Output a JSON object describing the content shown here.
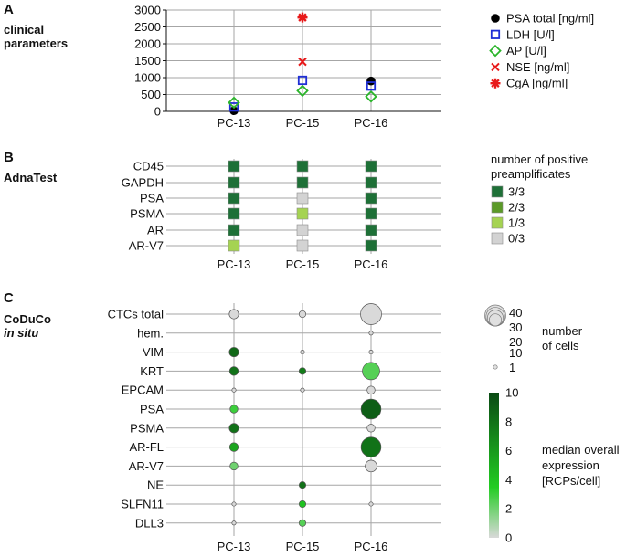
{
  "figure": {
    "panelA": {
      "letter": "A",
      "title_lines": [
        "clinical",
        "parameters"
      ]
    },
    "panelB": {
      "letter": "B",
      "title_lines": [
        "AdnaTest"
      ],
      "legend_title_lines": [
        "number of positive",
        "preamplificates"
      ]
    },
    "panelC": {
      "letter": "C",
      "title_lines": [
        "CoDuCo",
        "in situ"
      ],
      "size_legend_title_lines": [
        "number",
        "of cells"
      ],
      "color_legend_title_lines": [
        "median overall",
        "expression",
        "[RCPs/cell]"
      ]
    }
  },
  "chart_data": [
    {
      "type": "scatter",
      "panel": "A",
      "categories": [
        "PC-13",
        "PC-15",
        "PC-16"
      ],
      "ylim": [
        0,
        3000
      ],
      "yticks": [
        "0",
        "500",
        "1000",
        "1500",
        "2000",
        "2500",
        "3000"
      ],
      "series": [
        {
          "name": "PSA total [ng/ml]",
          "marker": "filled-circle",
          "color": "#000000",
          "values": [
            20,
            null,
            900
          ]
        },
        {
          "name": "LDH [U/l]",
          "marker": "open-square",
          "color": "#1f2fd6",
          "values": [
            130,
            920,
            750
          ]
        },
        {
          "name": "AP [U/l]",
          "marker": "open-diamond",
          "color": "#2bb52b",
          "values": [
            260,
            610,
            440
          ]
        },
        {
          "name": "NSE [ng/ml]",
          "marker": "cross",
          "color": "#e8191a",
          "values": [
            null,
            1470,
            null
          ]
        },
        {
          "name": "CgA [ng/ml]",
          "marker": "asterisk",
          "color": "#e8191a",
          "values": [
            null,
            2780,
            null
          ]
        }
      ]
    },
    {
      "type": "heatmap",
      "panel": "B",
      "categories": [
        "PC-13",
        "PC-15",
        "PC-16"
      ],
      "rows": [
        "CD45",
        "GAPDH",
        "PSA",
        "PSMA",
        "AR",
        "AR-V7"
      ],
      "values": [
        [
          "3/3",
          "3/3",
          "3/3"
        ],
        [
          "3/3",
          "3/3",
          "3/3"
        ],
        [
          "3/3",
          "0/3",
          "3/3"
        ],
        [
          "3/3",
          "1/3",
          "3/3"
        ],
        [
          "3/3",
          "0/3",
          "3/3"
        ],
        [
          "1/3",
          "0/3",
          "3/3"
        ]
      ],
      "legend": [
        {
          "label": "3/3",
          "color": "#1e7037"
        },
        {
          "label": "2/3",
          "color": "#5b9a28"
        },
        {
          "label": "1/3",
          "color": "#a5d352"
        },
        {
          "label": "0/3",
          "color": "#d3d3d3"
        }
      ]
    },
    {
      "type": "bubble",
      "panel": "C",
      "categories": [
        "PC-13",
        "PC-15",
        "PC-16"
      ],
      "rows": [
        "CTCs total",
        "hem.",
        "VIM",
        "KRT",
        "EPCAM",
        "PSA",
        "PSMA",
        "AR-FL",
        "AR-V7",
        "NE",
        "SLFN11",
        "DLL3"
      ],
      "cells": [
        [
          {
            "n": 5,
            "expr": null
          },
          {
            "n": 2,
            "expr": null
          },
          {
            "n": 40,
            "expr": null
          }
        ],
        [
          null,
          null,
          {
            "n": 1,
            "expr": null
          }
        ],
        [
          {
            "n": 5,
            "expr": 8.5
          },
          {
            "n": 1,
            "expr": null
          },
          {
            "n": 1,
            "expr": null
          }
        ],
        [
          {
            "n": 4,
            "expr": 8.0
          },
          {
            "n": 2,
            "expr": 7.5
          },
          {
            "n": 25,
            "expr": 2.5
          }
        ],
        [
          {
            "n": 1,
            "expr": null
          },
          {
            "n": 1,
            "expr": null
          },
          {
            "n": 3,
            "expr": null
          }
        ],
        [
          {
            "n": 3,
            "expr": 3.0
          },
          null,
          {
            "n": 35,
            "expr": 9.0
          }
        ],
        [
          {
            "n": 5,
            "expr": 8.0
          },
          null,
          {
            "n": 3,
            "expr": null
          }
        ],
        [
          {
            "n": 4,
            "expr": 5.5
          },
          null,
          {
            "n": 35,
            "expr": 8.0
          }
        ],
        [
          {
            "n": 3,
            "expr": 2.0
          },
          null,
          {
            "n": 9,
            "expr": null
          }
        ],
        [
          null,
          {
            "n": 2,
            "expr": 8.0
          },
          null
        ],
        [
          {
            "n": 1,
            "expr": null
          },
          {
            "n": 2,
            "expr": 4.0
          },
          {
            "n": 1,
            "expr": null
          }
        ],
        [
          {
            "n": 1,
            "expr": null
          },
          {
            "n": 2,
            "expr": 2.5
          },
          null
        ]
      ],
      "size_legend": [
        {
          "label": "40",
          "value": 40
        },
        {
          "label": "30",
          "value": 30
        },
        {
          "label": "20",
          "value": 20
        },
        {
          "label": "10",
          "value": 10
        },
        {
          "label": "1",
          "value": 1
        }
      ],
      "colorbar": {
        "min": 0,
        "max": 10,
        "ticks": [
          "0",
          "2",
          "4",
          "6",
          "8",
          "10"
        ],
        "low_color": "#d9d9d9",
        "mid_color": "#22cc22",
        "high_color": "#0a4a14",
        "no_data_color": "#d9d9d9"
      }
    }
  ]
}
